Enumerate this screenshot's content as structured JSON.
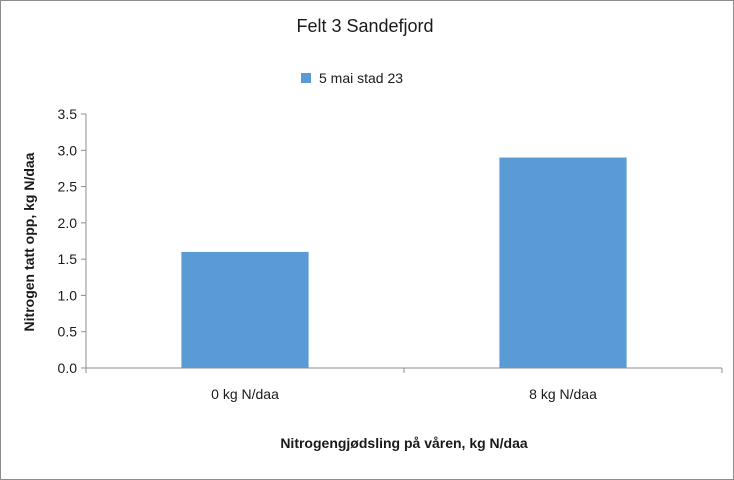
{
  "chart_data": {
    "type": "bar",
    "title": "Felt 3 Sandefjord",
    "categories": [
      "0 kg N/daa",
      "8 kg N/daa"
    ],
    "series": [
      {
        "name": "5 mai stad 23",
        "values": [
          1.6,
          2.9
        ],
        "color": "#5b9bd5"
      }
    ],
    "xlabel": "Nitrogengjødsling på våren, kg N/daa",
    "ylabel": "Nitrogen tatt opp, kg N/daa",
    "ylim": [
      0,
      3.5
    ],
    "yticks": [
      "0.0",
      "0.5",
      "1.0",
      "1.5",
      "2.0",
      "2.5",
      "3.0",
      "3.5"
    ],
    "grid": false,
    "legend_position": "top"
  }
}
